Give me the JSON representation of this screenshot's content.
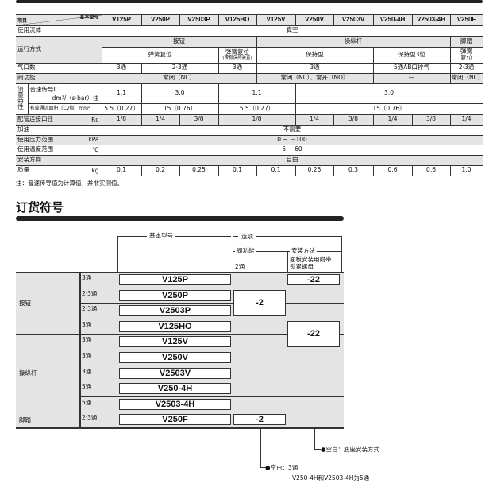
{
  "spec": {
    "header": {
      "item": "项目",
      "model": "基本型号",
      "models": [
        "V125P",
        "V250P",
        "V2503P",
        "V125HO",
        "V125V",
        "V250V",
        "V2503V",
        "V250-4H",
        "V2503-4H",
        "V250F"
      ]
    },
    "fluid": {
      "label": "使用流体",
      "cells": [
        {
          "t": "真空",
          "s": 10
        }
      ]
    },
    "operation": {
      "label": "运行方式",
      "row1": [
        {
          "t": "按钮",
          "s": 4
        },
        {
          "t": "操纵杆",
          "s": 5
        },
        {
          "t": "脚踏",
          "s": 1
        }
      ],
      "row2": [
        {
          "t": "弹簧复位",
          "s": 3
        },
        {
          "t": "弹簧复位",
          "sub": "(带有保持装置)",
          "s": 1
        },
        {
          "t": "保持型",
          "s": 3
        },
        {
          "t": "保持型3位",
          "s": 2
        },
        {
          "t": "弹簧\n复位",
          "s": 1
        }
      ]
    },
    "ports": {
      "label": "气口数",
      "cells": [
        {
          "t": "3通",
          "s": 1
        },
        {
          "t": "2·3通",
          "s": 2
        },
        {
          "t": "3通",
          "s": 1
        },
        {
          "t": "3通",
          "s": 3
        },
        {
          "t": "5通AB口排气",
          "s": 2
        },
        {
          "t": "2·3通",
          "s": 1
        }
      ]
    },
    "valve": {
      "label": "阀功能",
      "cells": [
        {
          "t": "常闭（NC）",
          "s": 4
        },
        {
          "t": "常闭（NC）、常开（NO）",
          "s": 3
        },
        {
          "t": "—",
          "s": 2
        },
        {
          "t": "常闭（NC）",
          "s": 1
        }
      ]
    },
    "flow": {
      "label": "流量特性",
      "c_label": "音速传导C",
      "c_unit": "dm³/（s·bar）注",
      "c_cells": [
        {
          "t": "1.1",
          "s": 1
        },
        {
          "t": "3.0",
          "s": 2
        },
        {
          "t": "1.1",
          "s": 2
        },
        {
          "t": "3.0",
          "s": 5
        }
      ],
      "cv_label": "有效通流面积〔Cv值〕mm²",
      "cv_cells": [
        {
          "t": "5.5〔0.27〕",
          "s": 1
        },
        {
          "t": "15〔0.76〕",
          "s": 2
        },
        {
          "t": "5.5〔0.27〕",
          "s": 2
        },
        {
          "t": "15〔0.76〕",
          "s": 5
        }
      ]
    },
    "pipe": {
      "label": "配管连接口径",
      "unit": "Rc",
      "cells": [
        {
          "t": "1/8",
          "s": 1
        },
        {
          "t": "1/4",
          "s": 1
        },
        {
          "t": "3/8",
          "s": 1
        },
        {
          "t": "1/8",
          "s": 2
        },
        {
          "t": "1/4",
          "s": 1
        },
        {
          "t": "3/8",
          "s": 1
        },
        {
          "t": "1/4",
          "s": 1
        },
        {
          "t": "3/8",
          "s": 1
        },
        {
          "t": "1/4",
          "s": 1
        }
      ]
    },
    "oil": {
      "label": "加油",
      "cells": [
        {
          "t": "不需要",
          "s": 10
        }
      ]
    },
    "pressure": {
      "label": "使用压力范围",
      "unit": "kPa",
      "cells": [
        {
          "t": "0 ~ －100",
          "s": 10
        }
      ]
    },
    "temp": {
      "label": "使用温度范围",
      "unit": "℃",
      "cells": [
        {
          "t": "5 ~ 60",
          "s": 10
        }
      ]
    },
    "mount": {
      "label": "安装方向",
      "cells": [
        {
          "t": "自由",
          "s": 10
        }
      ]
    },
    "mass": {
      "label": "质量",
      "unit": "kg",
      "cells": [
        {
          "t": "0.1",
          "s": 1
        },
        {
          "t": "0.2",
          "s": 1
        },
        {
          "t": "0.25",
          "s": 1
        },
        {
          "t": "0.1",
          "s": 1
        },
        {
          "t": "0.1",
          "s": 1
        },
        {
          "t": "0.25",
          "s": 1
        },
        {
          "t": "0.3",
          "s": 1
        },
        {
          "t": "0.6",
          "s": 1
        },
        {
          "t": "0.6",
          "s": 1
        },
        {
          "t": "1.0",
          "s": 1
        }
      ]
    },
    "note": "注：音速传导值为计算值，并非实测值。"
  },
  "order": {
    "title": "订货符号",
    "basic_model": "基本型号",
    "options": "选项",
    "valve_function": "阀功能",
    "valve_function_value": "2通",
    "mount_method": "安装方法",
    "mount_method_value": "面板安装用附带\n锁紧螺母",
    "categories": [
      "按钮",
      "操纵杆",
      "脚踏"
    ],
    "rows": [
      {
        "ports": "3通",
        "model": "V125P"
      },
      {
        "ports": "2·3通",
        "model": "V250P"
      },
      {
        "ports": "2·3通",
        "model": "V2503P"
      },
      {
        "ports": "3通",
        "model": "V125HO"
      },
      {
        "ports": "3通",
        "model": "V125V"
      },
      {
        "ports": "3通",
        "model": "V250V"
      },
      {
        "ports": "3通",
        "model": "V2503V"
      },
      {
        "ports": "5通",
        "model": "V250-4H"
      },
      {
        "ports": "5通",
        "model": "V2503-4H"
      },
      {
        "ports": "2·3通",
        "model": "V250F"
      }
    ],
    "option_codes": [
      "-22",
      "-2",
      "-22",
      "-2"
    ],
    "callout_mount": "●空白：底座安装方式",
    "callout_valve": "●空白：3通",
    "callout_valve_note": "V250-4H和V2503-4H为5通"
  }
}
